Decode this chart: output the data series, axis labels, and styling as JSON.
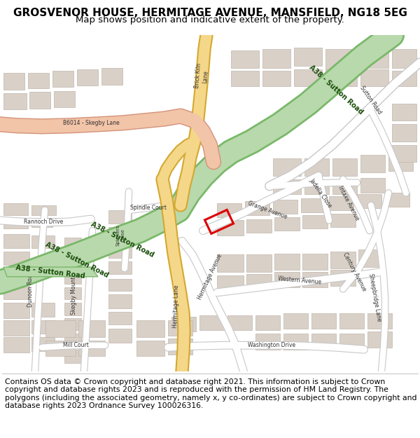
{
  "title_line1": "GROSVENOR HOUSE, HERMITAGE AVENUE, MANSFIELD, NG18 5EG",
  "title_line2": "Map shows position and indicative extent of the property.",
  "copyright_text": "Contains OS data © Crown copyright and database right 2021. This information is subject to Crown copyright and database rights 2023 and is reproduced with the permission of HM Land Registry. The polygons (including the associated geometry, namely x, y co-ordinates) are subject to Crown copyright and database rights 2023 Ordnance Survey 100026316.",
  "map_bg": "#f2efe9",
  "road_green_color": "#b8d9ac",
  "road_green_stroke": "#7ab86a",
  "road_green_text": "#1a4d0a",
  "road_yellow_color": "#f5d78a",
  "road_yellow_stroke": "#d4a830",
  "road_pink_color": "#f2c4a8",
  "road_pink_stroke": "#d4927a",
  "road_white_color": "#ffffff",
  "road_white_stroke": "#c8c8c8",
  "building_fill": "#d9d0c8",
  "building_stroke": "#bfb5ac",
  "plot_color": "#dd0000",
  "text_color": "#333333",
  "header_bg": "#ffffff",
  "footer_bg": "#ffffff",
  "title_fontsize": 11,
  "subtitle_fontsize": 9.5,
  "copyright_fontsize": 7.8
}
